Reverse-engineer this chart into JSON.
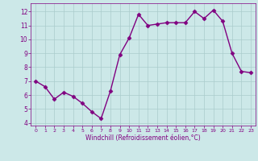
{
  "x": [
    0,
    1,
    2,
    3,
    4,
    5,
    6,
    7,
    8,
    9,
    10,
    11,
    12,
    13,
    14,
    15,
    16,
    17,
    18,
    19,
    20,
    21,
    22,
    23
  ],
  "y": [
    7.0,
    6.6,
    5.7,
    6.2,
    5.9,
    5.4,
    4.8,
    4.3,
    6.3,
    8.9,
    10.1,
    11.8,
    11.0,
    11.1,
    11.2,
    11.2,
    11.2,
    12.0,
    11.5,
    12.1,
    11.3,
    9.0,
    7.7,
    7.6
  ],
  "line_color": "#800080",
  "marker": "D",
  "marker_color": "#800080",
  "bg_color": "#cce8e8",
  "grid_color": "#aacccc",
  "xlabel": "Windchill (Refroidissement éolien,°C)",
  "xlabel_color": "#800080",
  "tick_color": "#800080",
  "ylim": [
    3.8,
    12.6
  ],
  "xlim": [
    -0.5,
    23.5
  ],
  "yticks": [
    4,
    5,
    6,
    7,
    8,
    9,
    10,
    11,
    12
  ],
  "xticks": [
    0,
    1,
    2,
    3,
    4,
    5,
    6,
    7,
    8,
    9,
    10,
    11,
    12,
    13,
    14,
    15,
    16,
    17,
    18,
    19,
    20,
    21,
    22,
    23
  ],
  "line_width": 1.0,
  "marker_size": 2.5
}
